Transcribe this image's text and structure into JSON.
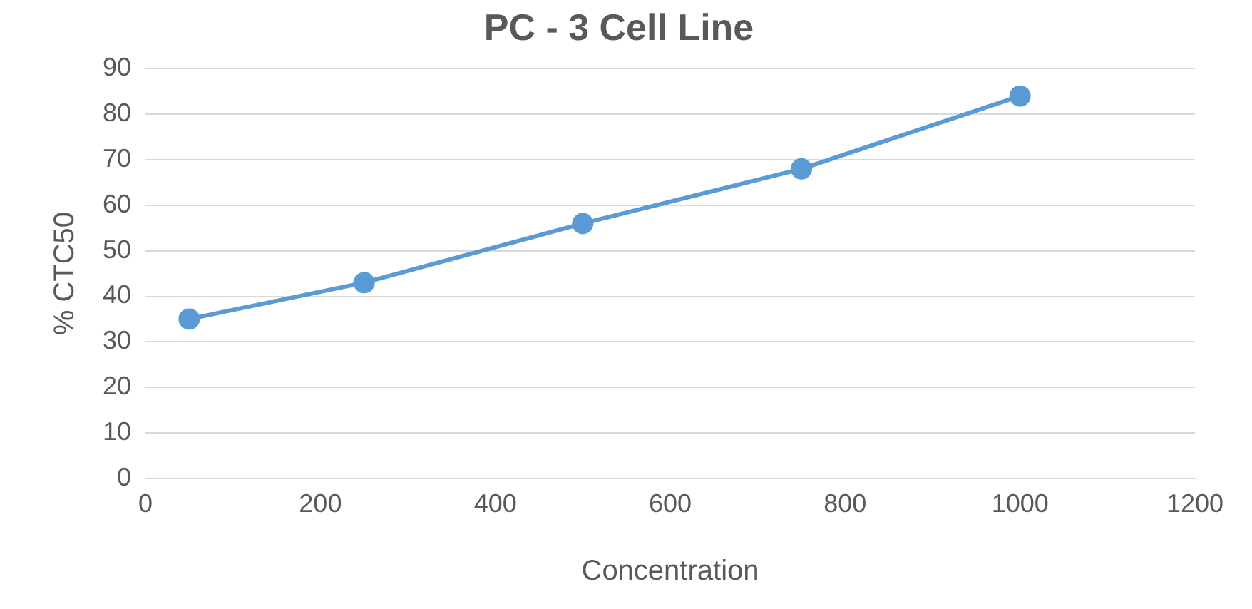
{
  "chart_data": {
    "type": "line",
    "title": "PC - 3 Cell Line",
    "xlabel": "Concentration",
    "ylabel": "% CTC50",
    "x": [
      50,
      250,
      500,
      750,
      1000
    ],
    "series": [
      {
        "color": "#5b9bd5",
        "values": [
          35,
          43,
          56,
          68,
          84
        ]
      }
    ],
    "xlim": [
      0,
      1200
    ],
    "xticks": [
      0,
      200,
      400,
      600,
      800,
      1000,
      1200
    ],
    "ylim": [
      0,
      90
    ],
    "yticks": [
      0,
      10,
      20,
      30,
      40,
      50,
      60,
      70,
      80,
      90
    ],
    "grid": "y",
    "legend": false,
    "marker": "circle",
    "line_style": "solid"
  }
}
